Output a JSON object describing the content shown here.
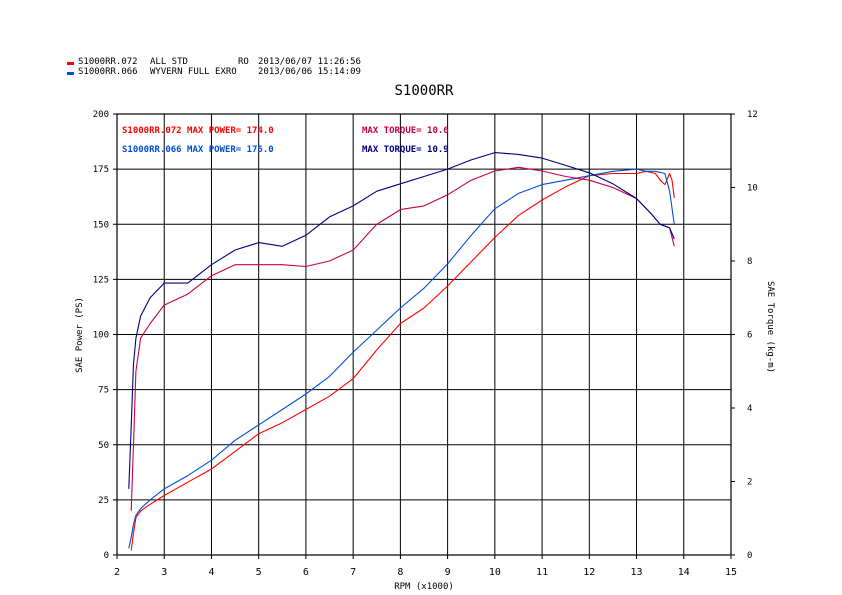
{
  "header": {
    "runs": [
      {
        "file": "S1000RR.072",
        "description": "ALL STD",
        "extra": "RO",
        "timestamp": "2013/06/07 11:26:56",
        "color": "#ff0000"
      },
      {
        "file": "S1000RR.066",
        "description": "WYVERN FULL EXRO",
        "extra": "",
        "timestamp": "2013/06/06 15:14:09",
        "color": "#0050d0"
      }
    ]
  },
  "chart_data": {
    "type": "line",
    "title": "S1000RR",
    "xlabel": "RPM (x1000)",
    "ylabel": "SAE Power (PS)",
    "y2label": "SAE Torque (kg-m)",
    "xlim": [
      2,
      15
    ],
    "ylim": [
      0,
      200
    ],
    "y2lim": [
      0,
      12
    ],
    "x_ticks": [
      2,
      3,
      4,
      5,
      6,
      7,
      8,
      9,
      10,
      11,
      12,
      13,
      14,
      15
    ],
    "y_ticks": [
      0,
      25,
      50,
      75,
      100,
      125,
      150,
      175,
      200
    ],
    "y2_ticks": [
      0,
      2,
      4,
      6,
      8,
      10,
      12
    ],
    "grid": true,
    "annotations": [
      {
        "text": "S1000RR.072  MAX POWER= 174.0",
        "color": "#ff0000",
        "row": 1,
        "col": 1
      },
      {
        "text": "MAX TORQUE= 10.6",
        "color": "#c8004a",
        "row": 1,
        "col": 2
      },
      {
        "text": "S1000RR.066  MAX POWER= 175.0",
        "color": "#0050d0",
        "row": 2,
        "col": 1
      },
      {
        "text": "MAX TORQUE= 10.9",
        "color": "#000080",
        "row": 2,
        "col": 2
      }
    ],
    "series": [
      {
        "name": "S1000RR.072",
        "quantity": "power",
        "axis": "left",
        "color": "#ff0000",
        "x": [
          2.3,
          2.35,
          2.4,
          2.5,
          2.7,
          3.0,
          3.5,
          4.0,
          4.5,
          5.0,
          5.5,
          6.0,
          6.5,
          7.0,
          7.5,
          8.0,
          8.5,
          9.0,
          9.5,
          10.0,
          10.5,
          11.0,
          11.5,
          12.0,
          12.5,
          13.0,
          13.2,
          13.4,
          13.5,
          13.6,
          13.7,
          13.75,
          13.8
        ],
        "y": [
          2,
          10,
          17,
          20,
          23,
          27,
          33,
          39,
          47,
          55,
          60,
          66,
          72,
          80,
          93,
          105,
          112,
          122,
          133,
          144,
          154,
          161,
          167,
          172,
          173,
          173,
          174,
          173,
          170,
          168,
          173,
          170,
          162
        ]
      },
      {
        "name": "S1000RR.066",
        "quantity": "power",
        "axis": "left",
        "color": "#0050d0",
        "x": [
          2.25,
          2.3,
          2.35,
          2.4,
          2.5,
          2.7,
          3.0,
          3.5,
          4.0,
          4.5,
          5.0,
          5.5,
          6.0,
          6.5,
          7.0,
          7.5,
          8.0,
          8.5,
          9.0,
          9.5,
          10.0,
          10.5,
          11.0,
          11.5,
          12.0,
          12.5,
          13.0,
          13.2,
          13.4,
          13.6,
          13.7,
          13.8
        ],
        "y": [
          3,
          8,
          14,
          18,
          21,
          25,
          30,
          36,
          43,
          52,
          59,
          66,
          73,
          81,
          92,
          102,
          112,
          121,
          132,
          145,
          157,
          164,
          168,
          170,
          172,
          174,
          175,
          174,
          174,
          173,
          165,
          150
        ]
      },
      {
        "name": "S1000RR.072",
        "quantity": "torque",
        "axis": "right",
        "color": "#c8004a",
        "x": [
          2.3,
          2.35,
          2.4,
          2.5,
          2.7,
          3.0,
          3.5,
          4.0,
          4.5,
          5.0,
          5.5,
          6.0,
          6.5,
          7.0,
          7.5,
          8.0,
          8.5,
          9.0,
          9.5,
          10.0,
          10.5,
          11.0,
          11.5,
          12.0,
          12.5,
          13.0,
          13.3,
          13.5,
          13.7,
          13.8
        ],
        "y": [
          1.2,
          3.0,
          5.0,
          5.9,
          6.3,
          6.8,
          7.1,
          7.6,
          7.9,
          7.9,
          7.9,
          7.85,
          8.0,
          8.3,
          9.0,
          9.4,
          9.5,
          9.8,
          10.2,
          10.45,
          10.55,
          10.45,
          10.3,
          10.2,
          10.0,
          9.7,
          9.3,
          9.0,
          8.9,
          8.4
        ]
      },
      {
        "name": "S1000RR.066",
        "quantity": "torque",
        "axis": "right",
        "color": "#000080",
        "x": [
          2.25,
          2.3,
          2.35,
          2.4,
          2.5,
          2.7,
          3.0,
          3.5,
          4.0,
          4.5,
          5.0,
          5.5,
          6.0,
          6.5,
          7.0,
          7.5,
          8.0,
          8.5,
          9.0,
          9.5,
          10.0,
          10.5,
          11.0,
          11.5,
          12.0,
          12.5,
          13.0,
          13.3,
          13.5,
          13.7,
          13.8
        ],
        "y": [
          1.8,
          3.5,
          5.2,
          5.9,
          6.5,
          7.0,
          7.4,
          7.4,
          7.9,
          8.3,
          8.5,
          8.4,
          8.7,
          9.2,
          9.5,
          9.9,
          10.1,
          10.3,
          10.5,
          10.75,
          10.95,
          10.9,
          10.8,
          10.6,
          10.4,
          10.1,
          9.7,
          9.3,
          9.0,
          8.9,
          8.6
        ]
      }
    ]
  }
}
